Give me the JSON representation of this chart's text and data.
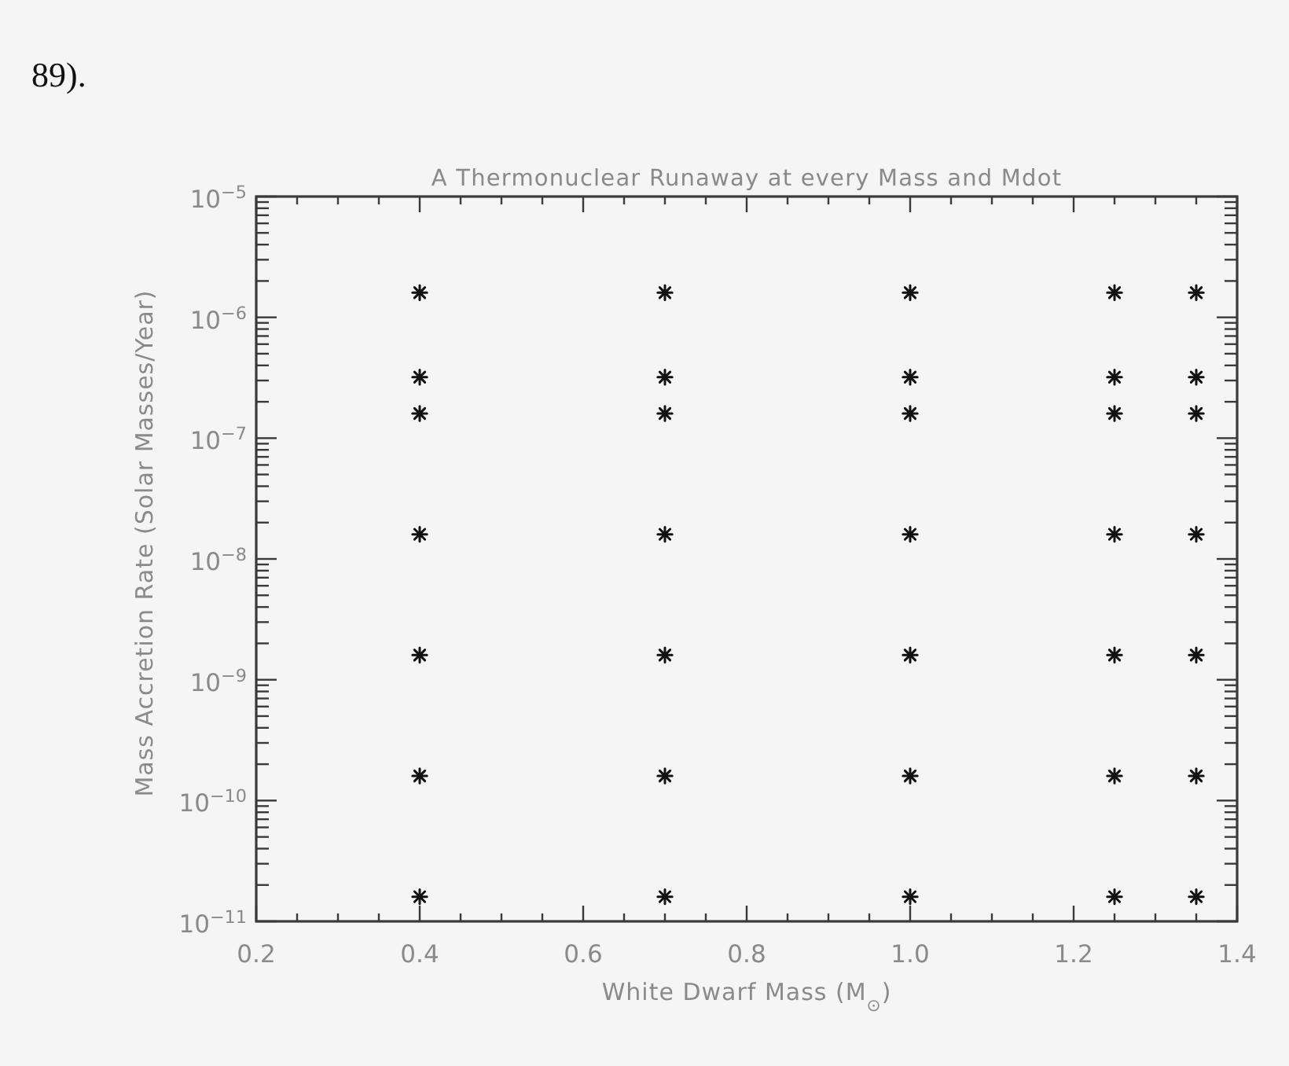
{
  "chart_data": {
    "type": "scatter",
    "title": "A Thermonuclear Runaway at every Mass and Mdot",
    "xlabel": "White Dwarf Mass (M$_{⊙}$)",
    "ylabel": "Mass Accretion Rate (Solar Masses/Year)",
    "annotations": [
      "89)."
    ],
    "x": [
      0.4,
      0.4,
      0.4,
      0.4,
      0.4,
      0.4,
      0.4,
      0.7,
      0.7,
      0.7,
      0.7,
      0.7,
      0.7,
      0.7,
      1.0,
      1.0,
      1.0,
      1.0,
      1.0,
      1.0,
      1.0,
      1.25,
      1.25,
      1.25,
      1.25,
      1.25,
      1.25,
      1.25,
      1.35,
      1.35,
      1.35,
      1.35,
      1.35,
      1.35,
      1.35
    ],
    "series": [
      {
        "color": "#111111",
        "values": [
          1.6e-06,
          3.2e-07,
          1.6e-07,
          1.6e-08,
          1.6e-09,
          1.6e-10,
          1.6e-11,
          1.6e-06,
          3.2e-07,
          1.6e-07,
          1.6e-08,
          1.6e-09,
          1.6e-10,
          1.6e-11,
          1.6e-06,
          3.2e-07,
          1.6e-07,
          1.6e-08,
          1.6e-09,
          1.6e-10,
          1.6e-11,
          1.6e-06,
          3.2e-07,
          1.6e-07,
          1.6e-08,
          1.6e-09,
          1.6e-10,
          1.6e-11,
          1.6e-06,
          3.2e-07,
          1.6e-07,
          1.6e-08,
          1.6e-09,
          1.6e-10,
          1.6e-11
        ]
      }
    ],
    "xlim": [
      0.2,
      1.4
    ],
    "ylim": [
      1e-11,
      1e-05
    ],
    "log": "y",
    "marker": "cross",
    "xticks": [
      0.2,
      {
        "value": 0.25,
        "label": null
      },
      {
        "value": 0.3,
        "label": null
      },
      {
        "value": 0.35,
        "label": null
      },
      0.4,
      {
        "value": 0.45,
        "label": null
      },
      {
        "value": 0.5,
        "label": null
      },
      {
        "value": 0.55,
        "label": null
      },
      0.6,
      {
        "value": 0.65,
        "label": null
      },
      {
        "value": 0.7,
        "label": null
      },
      {
        "value": 0.75,
        "label": null
      },
      0.8,
      {
        "value": 0.85,
        "label": null
      },
      {
        "value": 0.9,
        "label": null
      },
      {
        "value": 0.95,
        "label": null
      },
      {
        "value": 1,
        "label": "1.0"
      },
      {
        "value": 1.05,
        "label": null
      },
      {
        "value": 1.1,
        "label": null
      },
      {
        "value": 1.15,
        "label": null
      },
      1.2,
      {
        "value": 1.25,
        "label": null
      },
      {
        "value": 1.3,
        "label": null
      },
      {
        "value": 1.35,
        "label": null
      },
      1.4
    ],
    "yticks": [
      {
        "value": 1e-11,
        "label": "10$^{−11}$"
      },
      {
        "value": 2e-11,
        "label": null
      },
      {
        "value": 3e-11,
        "label": null
      },
      {
        "value": 4e-11,
        "label": null
      },
      {
        "value": 5e-11,
        "label": null
      },
      {
        "value": 6e-11,
        "label": null
      },
      {
        "value": 7e-11,
        "label": null
      },
      {
        "value": 8e-11,
        "label": null
      },
      {
        "value": 9e-11,
        "label": null
      },
      {
        "value": 1e-10,
        "label": "10$^{−10}$"
      },
      {
        "value": 2e-10,
        "label": null
      },
      {
        "value": 3e-10,
        "label": null
      },
      {
        "value": 4e-10,
        "label": null
      },
      {
        "value": 5e-10,
        "label": null
      },
      {
        "value": 6e-10,
        "label": null
      },
      {
        "value": 7e-10,
        "label": null
      },
      {
        "value": 8e-10,
        "label": null
      },
      {
        "value": 9e-10,
        "label": null
      },
      {
        "value": 1e-09,
        "label": "10$^{−9}$"
      },
      {
        "value": 2e-09,
        "label": null
      },
      {
        "value": 3e-09,
        "label": null
      },
      {
        "value": 4e-09,
        "label": null
      },
      {
        "value": 5e-09,
        "label": null
      },
      {
        "value": 6e-09,
        "label": null
      },
      {
        "value": 7e-09,
        "label": null
      },
      {
        "value": 8e-09,
        "label": null
      },
      {
        "value": 9e-09,
        "label": null
      },
      {
        "value": 1e-08,
        "label": "10$^{−8}$"
      },
      {
        "value": 2e-08,
        "label": null
      },
      {
        "value": 3e-08,
        "label": null
      },
      {
        "value": 4e-08,
        "label": null
      },
      {
        "value": 5e-08,
        "label": null
      },
      {
        "value": 6e-08,
        "label": null
      },
      {
        "value": 7e-08,
        "label": null
      },
      {
        "value": 8e-08,
        "label": null
      },
      {
        "value": 9e-08,
        "label": null
      },
      {
        "value": 1e-07,
        "label": "10$^{−7}$"
      },
      {
        "value": 2e-07,
        "label": null
      },
      {
        "value": 3e-07,
        "label": null
      },
      {
        "value": 4e-07,
        "label": null
      },
      {
        "value": 5e-07,
        "label": null
      },
      {
        "value": 6e-07,
        "label": null
      },
      {
        "value": 7e-07,
        "label": null
      },
      {
        "value": 8e-07,
        "label": null
      },
      {
        "value": 9e-07,
        "label": null
      },
      {
        "value": 1e-06,
        "label": "10$^{−6}$"
      },
      {
        "value": 2e-06,
        "label": null
      },
      {
        "value": 3e-06,
        "label": null
      },
      {
        "value": 4e-06,
        "label": null
      },
      {
        "value": 5e-06,
        "label": null
      },
      {
        "value": 6e-06,
        "label": null
      },
      {
        "value": 7e-06,
        "label": null
      },
      {
        "value": 8e-06,
        "label": null
      },
      {
        "value": 9e-06,
        "label": null
      },
      {
        "value": 1e-05,
        "label": "10$^{−5}$"
      }
    ]
  }
}
